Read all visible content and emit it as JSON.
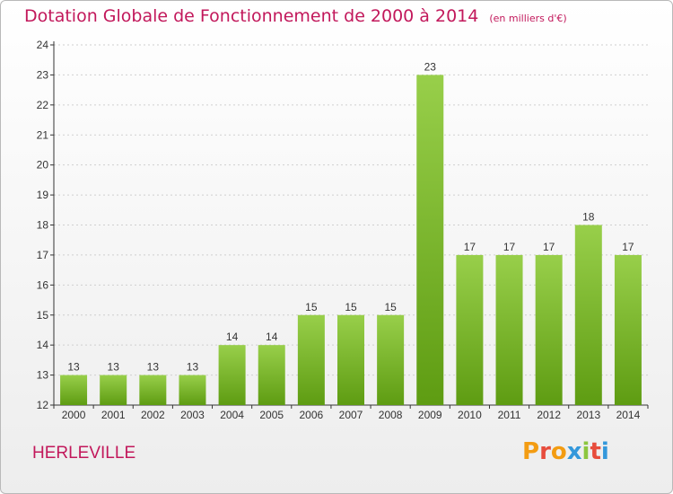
{
  "header": {
    "title": "Dotation Globale de Fonctionnement de 2000 à 2014",
    "unit": "(en milliers d'€)"
  },
  "footer": {
    "commune": "HERLEVILLE",
    "logo": {
      "letters": [
        "P",
        "r",
        "o",
        "x",
        "i",
        "t",
        "i"
      ],
      "colors": [
        "#f39c12",
        "#e74c3c",
        "#f39c12",
        "#3498db",
        "#8cc63f",
        "#e74c3c",
        "#3498db"
      ]
    }
  },
  "colors": {
    "bar_top": "#98cf4a",
    "bar_bottom": "#5e9c12",
    "title": "#c2185b",
    "axis": "#333333",
    "grid": "#cfcfcf"
  },
  "chart_data": {
    "type": "bar",
    "title": "Dotation Globale de Fonctionnement de 2000 à 2014",
    "subtitle": "(en milliers d'€)",
    "xlabel": "",
    "ylabel": "",
    "categories": [
      "2000",
      "2001",
      "2002",
      "2003",
      "2004",
      "2005",
      "2006",
      "2007",
      "2008",
      "2009",
      "2010",
      "2011",
      "2012",
      "2013",
      "2014"
    ],
    "values": [
      13,
      13,
      13,
      13,
      14,
      14,
      15,
      15,
      15,
      23,
      17,
      17,
      17,
      18,
      17
    ],
    "ylim": [
      12,
      24
    ],
    "yticks": [
      12,
      13,
      14,
      15,
      16,
      17,
      18,
      19,
      20,
      21,
      22,
      23,
      24
    ],
    "grid": true,
    "data_labels": true
  }
}
